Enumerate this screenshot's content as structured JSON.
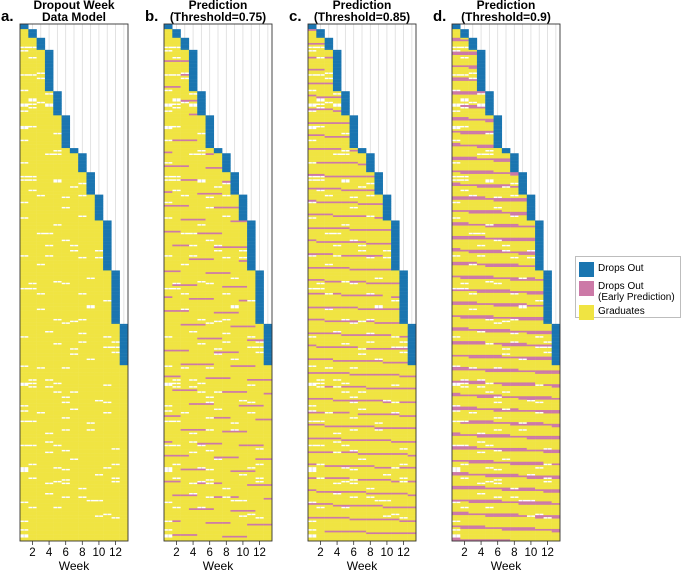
{
  "figure": {
    "legend": {
      "items": [
        {
          "label": "Drops Out",
          "color": "#1a75b0"
        },
        {
          "label": "Drops Out\n(Early Prediction)",
          "color": "#cc79a7"
        },
        {
          "label": "Graduates",
          "color": "#f0e442"
        }
      ]
    }
  },
  "colors": {
    "dropout": "#1a75b0",
    "early": "#cc79a7",
    "graduate": "#f0e442",
    "gridline": "#dcdcdc",
    "frame": "#333333",
    "background": "#ffffff"
  },
  "chart_data": [
    {
      "type": "heatmap",
      "panel_label": "a.",
      "title": "Dropout Week\nData Model",
      "xlabel": "Week",
      "ylabel": "",
      "xlim": [
        0.5,
        13.5
      ],
      "x_ticks": [
        2,
        4,
        6,
        8,
        10,
        12
      ],
      "x_tick_labels": [
        "2",
        "4",
        "6",
        "8",
        "10",
        "12"
      ],
      "rows_visualized": 300,
      "grid": "vertical",
      "threshold": null,
      "cell_states": [
        "graduate",
        "dropout"
      ],
      "dropout_week_start_row_fraction": {
        "1": 0.0,
        "2": 0.01,
        "3": 0.025,
        "4": 0.05,
        "5": 0.13,
        "6": 0.175,
        "7": 0.24,
        "8": 0.25,
        "9": 0.285,
        "10": 0.33,
        "11": 0.38,
        "12": 0.475,
        "13": 0.58
      },
      "dropout_week_end_row_fraction": {
        "1": 0.01,
        "2": 0.025,
        "3": 0.05,
        "4": 0.13,
        "5": 0.175,
        "6": 0.24,
        "7": 0.25,
        "8": 0.285,
        "9": 0.33,
        "10": 0.38,
        "11": 0.475,
        "12": 0.58,
        "13": 0.66
      }
    },
    {
      "type": "heatmap",
      "panel_label": "b.",
      "title": "Prediction\n(Threshold=0.75)",
      "xlabel": "Week",
      "ylabel": "",
      "xlim": [
        0.5,
        13.5
      ],
      "x_ticks": [
        2,
        4,
        6,
        8,
        10,
        12
      ],
      "x_tick_labels": [
        "2",
        "4",
        "6",
        "8",
        "10",
        "12"
      ],
      "rows_visualized": 300,
      "grid": "vertical",
      "threshold": 0.75,
      "cell_states": [
        "graduate",
        "dropout",
        "early_prediction"
      ]
    },
    {
      "type": "heatmap",
      "panel_label": "c.",
      "title": "Prediction\n(Threshold=0.85)",
      "xlabel": "Week",
      "ylabel": "",
      "xlim": [
        0.5,
        13.5
      ],
      "x_ticks": [
        2,
        4,
        6,
        8,
        10,
        12
      ],
      "x_tick_labels": [
        "2",
        "4",
        "6",
        "8",
        "10",
        "12"
      ],
      "rows_visualized": 300,
      "grid": "vertical",
      "threshold": 0.85,
      "cell_states": [
        "graduate",
        "dropout",
        "early_prediction"
      ]
    },
    {
      "type": "heatmap",
      "panel_label": "d.",
      "title": "Prediction\n(Threshold=0.9)",
      "xlabel": "Week",
      "ylabel": "",
      "xlim": [
        0.5,
        13.5
      ],
      "x_ticks": [
        2,
        4,
        6,
        8,
        10,
        12
      ],
      "x_tick_labels": [
        "2",
        "4",
        "6",
        "8",
        "10",
        "12"
      ],
      "rows_visualized": 300,
      "grid": "vertical",
      "threshold": 0.9,
      "cell_states": [
        "graduate",
        "dropout",
        "early_prediction"
      ]
    }
  ]
}
